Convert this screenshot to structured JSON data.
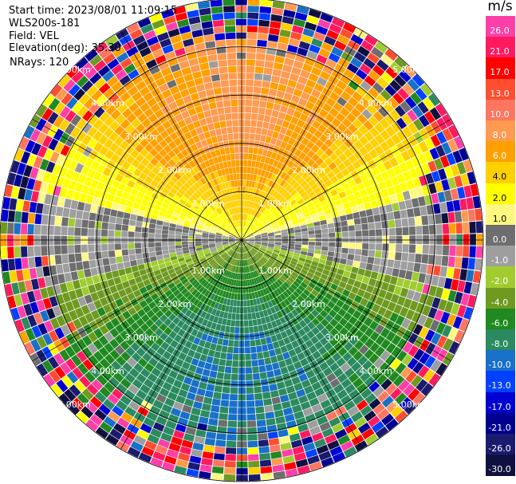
{
  "header": {
    "start_time": "Start time: 2023/08/01 11:09:15",
    "instrument": "WLS200s-181",
    "field": "Field: VEL",
    "elevation": "Elevation(deg): 35.30",
    "nrays": "NRays: 120"
  },
  "colorbar": {
    "unit": "m/s",
    "ticks": [
      "26.0",
      "21.0",
      "17.0",
      "13.0",
      "10.0",
      "8.0",
      "6.0",
      "4.0",
      "2.0",
      "1.0",
      "0.0",
      "-1.0",
      "-2.0",
      "-4.0",
      "-6.0",
      "-8.0",
      "-10.0",
      "-13.0",
      "-17.0",
      "-21.0",
      "-26.0",
      "-30.0"
    ],
    "colors": [
      "#ff3fa8",
      "#ff1a60",
      "#ff0000",
      "#ff4d30",
      "#ff7560",
      "#ff9a50",
      "#ffa000",
      "#ffd000",
      "#ffff00",
      "#fff880",
      "#6e6e6e",
      "#9e9e9e",
      "#a0cc30",
      "#6f9a20",
      "#208a20",
      "#2c8a60",
      "#1870c8",
      "#0040ff",
      "#0000d0",
      "#000090",
      "#1a1a6e",
      "#101040"
    ]
  },
  "chart_data": {
    "type": "ppi",
    "field": "VEL",
    "units": "m/s",
    "nrays": 120,
    "elevation_deg": 35.3,
    "range_rings_km": [
      1.0,
      2.0,
      3.0,
      4.0,
      5.0
    ],
    "range_ring_labels": [
      "1.00km",
      "2.00km",
      "3.00km",
      "4.00km",
      "5.00km"
    ],
    "ring_label_dirs_deg": [
      315,
      45,
      135,
      225
    ],
    "spokes_deg": [
      0,
      30,
      60,
      90,
      120,
      150,
      180,
      210,
      240,
      270,
      300,
      330
    ],
    "max_range_km": 5.0,
    "color_levels_mps": [
      -30,
      -26,
      -21,
      -17,
      -13,
      -10,
      -8,
      -6,
      -4,
      -2,
      -1,
      0,
      1,
      2,
      4,
      6,
      8,
      10,
      13,
      17,
      21,
      26,
      30
    ],
    "velocity_pattern": {
      "positive_azimuth_deg": 0,
      "negative_azimuth_deg": 180,
      "max_abs_mps": 9,
      "noise_starts_km": 4.2
    }
  }
}
